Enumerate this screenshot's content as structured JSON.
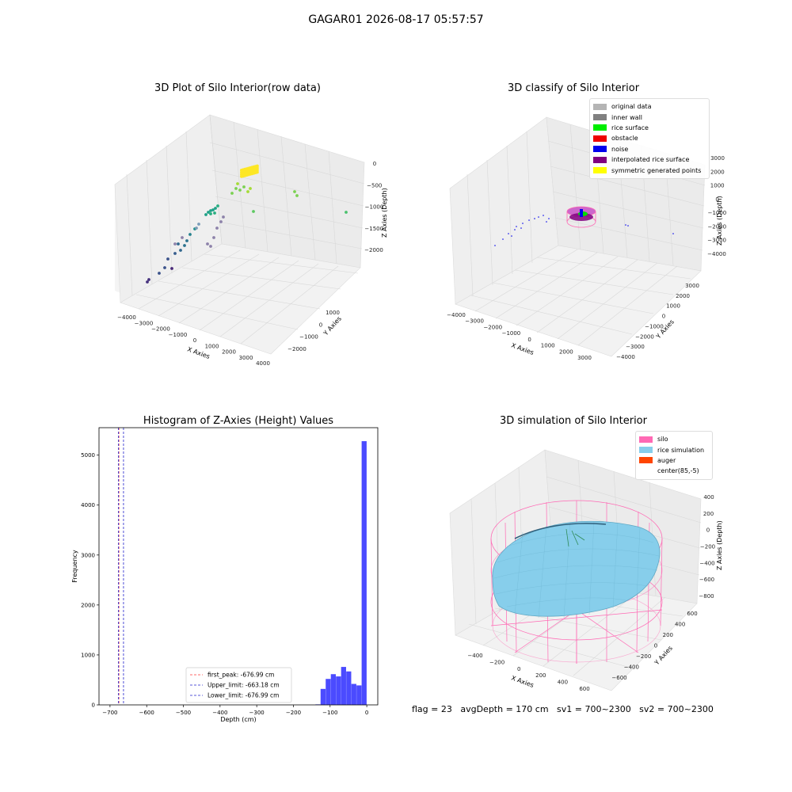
{
  "figure": {
    "title": "GAGAR01 2026-08-17 05:57:57"
  },
  "colors": {
    "pane": "#f2f2f2",
    "grid": "#dcdcdc",
    "hist_bar": "#4b4bff",
    "first_peak": "#ff3b3b",
    "limit": "#2222cc",
    "silo": "#ff69b4",
    "rice": "#87ceeb",
    "auger": "#ff4500"
  },
  "panels": {
    "raw": {
      "title": "3D Plot of Silo Interior(row data)",
      "xlabel": "X Axies",
      "ylabel": "Y Axies",
      "zlabel": "Z Axies (Depth)",
      "xticks": [
        "−4000",
        "−3000",
        "−2000",
        "−1000",
        "0",
        "1000",
        "2000",
        "3000",
        "4000"
      ],
      "yticks": [
        "−2000",
        "−1000",
        "0",
        "1000"
      ],
      "zticks": [
        "0",
        "−500",
        "−1000",
        "−1500",
        "−2000"
      ]
    },
    "classify": {
      "title": "3D classify of Silo Interior",
      "xlabel": "X Axies",
      "ylabel": "Y Axies",
      "zlabel": "Z Axies (Depth)",
      "xticks": [
        "−4000",
        "−3000",
        "−2000",
        "−1000",
        "0",
        "1000",
        "2000",
        "3000"
      ],
      "yticks": [
        "−4000",
        "−3000",
        "−2000",
        "−1000",
        "0",
        "1000",
        "2000",
        "3000"
      ],
      "zticks": [
        "3000",
        "2000",
        "1000",
        "0",
        "−1000",
        "−2000",
        "−3000",
        "−4000"
      ],
      "legend": [
        {
          "label": "original data",
          "color": "#b4b4b4"
        },
        {
          "label": "inner wall",
          "color": "#808080"
        },
        {
          "label": "rice surface",
          "color": "#00ee00"
        },
        {
          "label": "obstacle",
          "color": "#ee0000"
        },
        {
          "label": "noise",
          "color": "#0000ee"
        },
        {
          "label": "interpolated rice surface",
          "color": "#800080"
        },
        {
          "label": "symmetric generated points",
          "color": "#ffff00"
        }
      ]
    },
    "simulation": {
      "title": "3D simulation of Silo Interior",
      "xlabel": "X Axies",
      "ylabel": "Y Axies",
      "zlabel": "Z Axies (Depth)",
      "xticks": [
        "−400",
        "−200",
        "0",
        "200",
        "400",
        "600"
      ],
      "yticks": [
        "−600",
        "−400",
        "−200",
        "0",
        "200",
        "400",
        "600"
      ],
      "zticks": [
        "400",
        "200",
        "0",
        "−200",
        "−400",
        "−600",
        "−800"
      ],
      "legend": [
        {
          "label": "silo",
          "color": "#ff69b4"
        },
        {
          "label": "rice simulation",
          "color": "#87ceeb"
        },
        {
          "label": "auger",
          "color": "#ff4500"
        },
        {
          "label": "center(85,-5)",
          "color": ""
        }
      ]
    }
  },
  "chart_data": {
    "type": "bar",
    "title": "Histogram of Z-Axies (Height) Values",
    "xlabel": "Depth (cm)",
    "ylabel": "Frequency",
    "xlim": [
      -730,
      30
    ],
    "ylim": [
      0,
      5550
    ],
    "xticks": [
      -700,
      -600,
      -500,
      -400,
      -300,
      -200,
      -100,
      0
    ],
    "xtick_labels": [
      "−700",
      "−600",
      "−500",
      "−400",
      "−300",
      "−200",
      "−100",
      "0"
    ],
    "yticks": [
      0,
      1000,
      2000,
      3000,
      4000,
      5000
    ],
    "bin_width": 14,
    "bins": [
      {
        "x0": -140,
        "value": 10
      },
      {
        "x0": -126,
        "value": 320
      },
      {
        "x0": -112,
        "value": 520
      },
      {
        "x0": -98,
        "value": 615
      },
      {
        "x0": -84,
        "value": 570
      },
      {
        "x0": -70,
        "value": 760
      },
      {
        "x0": -56,
        "value": 670
      },
      {
        "x0": -42,
        "value": 420
      },
      {
        "x0": -28,
        "value": 390
      },
      {
        "x0": -14,
        "value": 5280
      }
    ],
    "lines": [
      {
        "label": "first_peak: -676.99 cm",
        "x": -676.99,
        "color": "#ff3b3b"
      },
      {
        "label": "Upper_limit: -663.18 cm",
        "x": -663.18,
        "color": "#2222cc"
      },
      {
        "label": "Lower_limit: -676.99 cm",
        "x": -676.99,
        "color": "#2222cc"
      }
    ],
    "grid": false,
    "legend_position": "bottom-center"
  },
  "status": {
    "text": "flag = 23   avgDepth = 170 cm   sv1 = 700~2300   sv2 = 700~2300"
  }
}
